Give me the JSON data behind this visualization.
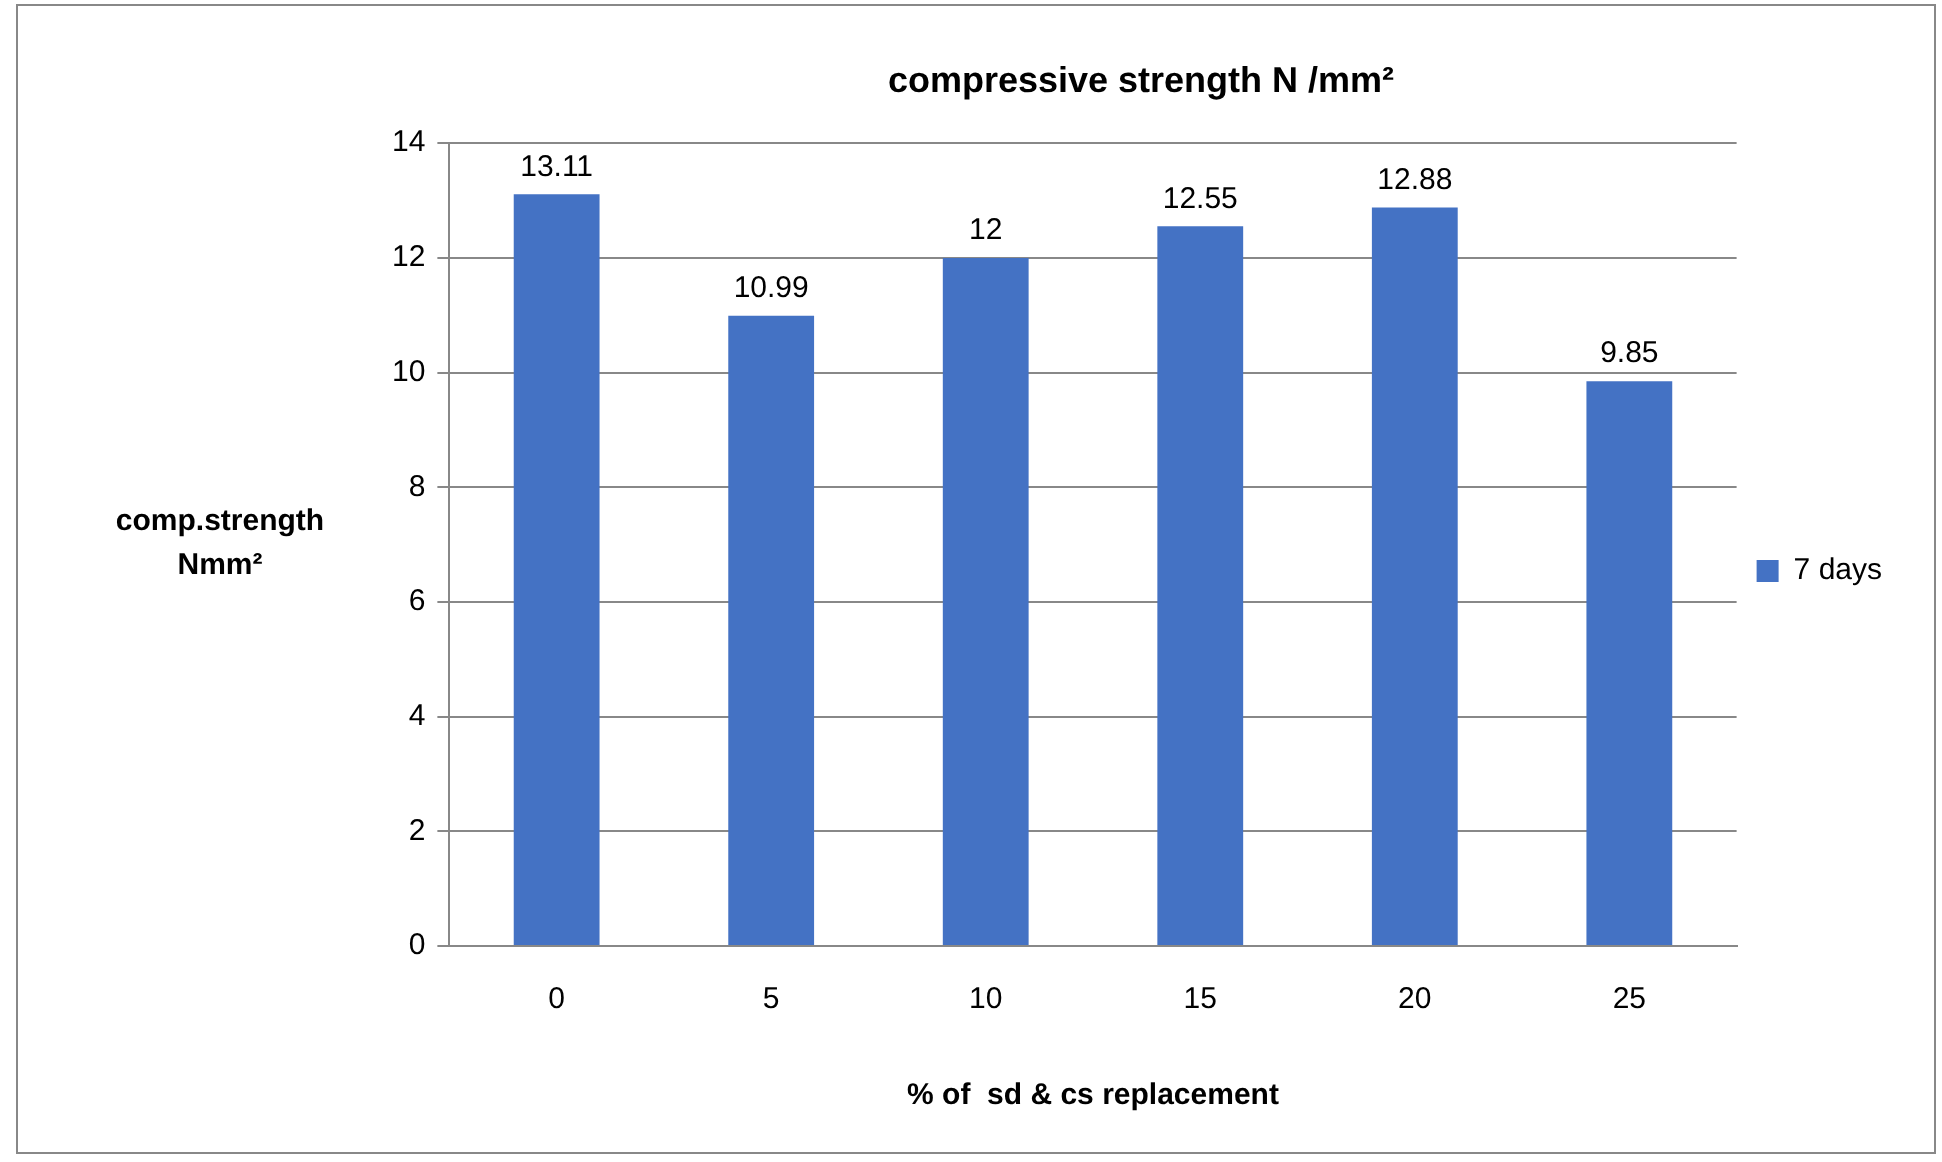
{
  "chart_data": {
    "type": "bar",
    "title": "compressive strength N /mm²",
    "xlabel": "% of  sd & cs replacement",
    "ylabel": "comp.strength Nmm²",
    "categories": [
      "0",
      "5",
      "10",
      "15",
      "20",
      "25"
    ],
    "series": [
      {
        "name": "7 days",
        "color": "#4472c4",
        "values": [
          13.11,
          10.99,
          12,
          12.55,
          12.88,
          9.85
        ]
      }
    ],
    "ylim": [
      0,
      14
    ],
    "yticks": [
      0,
      2,
      4,
      6,
      8,
      10,
      12,
      14
    ],
    "grid": "y",
    "legend": "right",
    "data_labels": true
  }
}
